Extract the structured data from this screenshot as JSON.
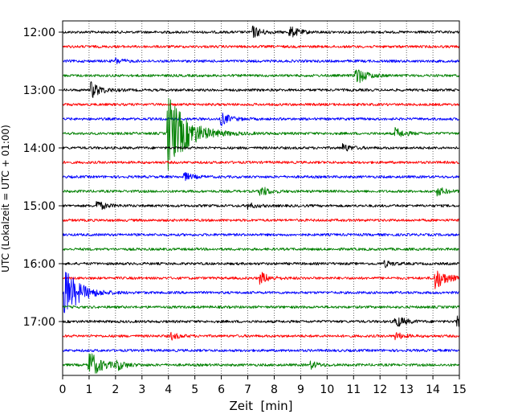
{
  "chart_data": {
    "type": "line",
    "title": "",
    "xlabel": "Zeit  [min]",
    "ylabel": "UTC (Lokalzeit = UTC + 01:00)",
    "xlim": [
      0,
      15
    ],
    "x_ticks": [
      0,
      1,
      2,
      3,
      4,
      5,
      6,
      7,
      8,
      9,
      10,
      11,
      12,
      13,
      14,
      15
    ],
    "y_tick_labels": [
      "12:00",
      "13:00",
      "14:00",
      "15:00",
      "16:00",
      "17:00"
    ],
    "grid": "vertical dotted at each minute",
    "legend": "none",
    "colors": [
      "#000000",
      "#ff0000",
      "#0000ff",
      "#008000"
    ],
    "traces": [
      {
        "start": "12:00",
        "color": "#000000",
        "events": [
          {
            "t": 7.2,
            "amp": 0.5
          },
          {
            "t": 8.6,
            "amp": 0.5
          }
        ]
      },
      {
        "start": "12:15",
        "color": "#ff0000",
        "events": []
      },
      {
        "start": "12:30",
        "color": "#0000ff",
        "events": [
          {
            "t": 2.0,
            "amp": 0.25
          }
        ]
      },
      {
        "start": "12:45",
        "color": "#008000",
        "events": [
          {
            "t": 11.1,
            "amp": 0.8
          }
        ]
      },
      {
        "start": "13:00",
        "color": "#000000",
        "events": [
          {
            "t": 1.1,
            "amp": 0.7
          }
        ]
      },
      {
        "start": "13:15",
        "color": "#ff0000",
        "events": []
      },
      {
        "start": "13:30",
        "color": "#0000ff",
        "events": [
          {
            "t": 6.0,
            "amp": 0.55
          }
        ]
      },
      {
        "start": "13:45",
        "color": "#008000",
        "events": [
          {
            "t": 4.0,
            "amp": 3.5
          },
          {
            "t": 12.6,
            "amp": 0.45
          }
        ]
      },
      {
        "start": "14:00",
        "color": "#000000",
        "events": [
          {
            "t": 10.6,
            "amp": 0.35
          }
        ]
      },
      {
        "start": "14:15",
        "color": "#ff0000",
        "events": []
      },
      {
        "start": "14:30",
        "color": "#0000ff",
        "events": [
          {
            "t": 4.6,
            "amp": 0.35
          }
        ]
      },
      {
        "start": "14:45",
        "color": "#008000",
        "events": [
          {
            "t": 7.5,
            "amp": 0.45
          },
          {
            "t": 14.2,
            "amp": 0.35
          }
        ]
      },
      {
        "start": "15:00",
        "color": "#000000",
        "events": [
          {
            "t": 1.3,
            "amp": 0.45
          },
          {
            "t": 7.0,
            "amp": 0.25
          }
        ]
      },
      {
        "start": "15:15",
        "color": "#ff0000",
        "events": []
      },
      {
        "start": "15:30",
        "color": "#0000ff",
        "events": []
      },
      {
        "start": "15:45",
        "color": "#008000",
        "events": []
      },
      {
        "start": "16:00",
        "color": "#000000",
        "events": [
          {
            "t": 12.2,
            "amp": 0.25
          }
        ]
      },
      {
        "start": "16:15",
        "color": "#ff0000",
        "events": [
          {
            "t": 7.5,
            "amp": 0.5
          },
          {
            "t": 14.1,
            "amp": 1.0
          }
        ]
      },
      {
        "start": "16:30",
        "color": "#0000ff",
        "events": [
          {
            "t": 0.1,
            "amp": 2.2
          }
        ]
      },
      {
        "start": "16:45",
        "color": "#008000",
        "events": []
      },
      {
        "start": "17:00",
        "color": "#000000",
        "events": [
          {
            "t": 12.6,
            "amp": 0.55
          },
          {
            "t": 14.9,
            "amp": 0.6
          }
        ]
      },
      {
        "start": "17:15",
        "color": "#ff0000",
        "events": [
          {
            "t": 4.1,
            "amp": 0.3
          },
          {
            "t": 12.6,
            "amp": 0.3
          }
        ]
      },
      {
        "start": "17:30",
        "color": "#0000ff",
        "events": []
      },
      {
        "start": "17:45",
        "color": "#008000",
        "events": [
          {
            "t": 1.0,
            "amp": 1.3
          },
          {
            "t": 2.0,
            "amp": 0.45
          },
          {
            "t": 9.4,
            "amp": 0.3
          }
        ]
      }
    ]
  }
}
